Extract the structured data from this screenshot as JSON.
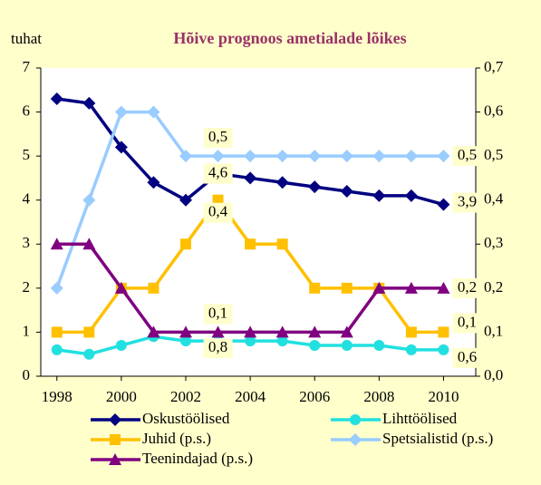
{
  "chart_data": {
    "type": "line",
    "title": "Hõive prognoos ametialade lõikes",
    "y_label": "tuhat",
    "x": [
      1998,
      1999,
      2000,
      2001,
      2002,
      2003,
      2004,
      2005,
      2006,
      2007,
      2008,
      2009,
      2010
    ],
    "xlim": [
      1997.5,
      2011
    ],
    "xticks": [
      1998,
      2000,
      2002,
      2004,
      2006,
      2008,
      2010
    ],
    "ylim": [
      0,
      7
    ],
    "yticks": [
      0,
      1,
      2,
      3,
      4,
      5,
      6,
      7
    ],
    "y2lim": [
      0,
      0.7
    ],
    "y2ticks": [
      {
        "value": 0,
        "label": "0,0"
      },
      {
        "value": 0.1,
        "label": "0,1"
      },
      {
        "value": 0.2,
        "label": "0,2"
      },
      {
        "value": 0.3,
        "label": "0,3"
      },
      {
        "value": 0.4,
        "label": "0,4"
      },
      {
        "value": 0.5,
        "label": "0,5"
      },
      {
        "value": 0.6,
        "label": "0,6"
      },
      {
        "value": 0.7,
        "label": "0,7"
      }
    ],
    "series": [
      {
        "name": "Oskustöölised",
        "color": "#000080",
        "marker": "diamond",
        "values": [
          6.3,
          6.2,
          5.2,
          4.4,
          4.0,
          4.6,
          4.5,
          4.4,
          4.3,
          4.2,
          4.1,
          4.1,
          3.9
        ],
        "value_labels": [
          null,
          null,
          null,
          null,
          null,
          "4,6",
          null,
          null,
          null,
          null,
          null,
          null,
          "3,9"
        ]
      },
      {
        "name": "Lihttöölised",
        "color": "#22e0e0",
        "marker": "circle",
        "values": [
          0.6,
          0.5,
          0.7,
          0.9,
          0.8,
          0.8,
          0.8,
          0.8,
          0.7,
          0.7,
          0.7,
          0.6,
          0.6
        ],
        "value_labels": [
          null,
          null,
          null,
          null,
          null,
          "0,8",
          null,
          null,
          null,
          null,
          null,
          null,
          "0,6"
        ]
      },
      {
        "name": "Juhid (p.s.)",
        "color": "#ffc000",
        "marker": "square",
        "axis": "y2",
        "values": [
          0.1,
          0.1,
          0.2,
          0.2,
          0.3,
          0.4,
          0.3,
          0.3,
          0.2,
          0.2,
          0.2,
          0.1,
          0.1
        ],
        "value_labels": [
          null,
          null,
          null,
          null,
          null,
          "0,4",
          null,
          null,
          null,
          null,
          null,
          null,
          "0,1"
        ]
      },
      {
        "name": "Spetsialistid (p.s.)",
        "color": "#99ccff",
        "marker": "diamond",
        "axis": "y2",
        "values": [
          0.2,
          0.4,
          0.6,
          0.6,
          0.5,
          0.5,
          0.5,
          0.5,
          0.5,
          0.5,
          0.5,
          0.5,
          0.5
        ],
        "value_labels": [
          null,
          null,
          null,
          null,
          null,
          "0,5",
          null,
          null,
          null,
          null,
          null,
          null,
          "0,5"
        ]
      },
      {
        "name": "Teenindajad (p.s.)",
        "color": "#800080",
        "marker": "triangle",
        "axis": "y2",
        "values": [
          0.3,
          0.3,
          0.2,
          0.1,
          0.1,
          0.1,
          0.1,
          0.1,
          0.1,
          0.1,
          0.2,
          0.2,
          0.2
        ],
        "value_labels": [
          null,
          null,
          null,
          null,
          null,
          "0,1",
          null,
          null,
          null,
          null,
          null,
          null,
          "0,2"
        ]
      }
    ]
  }
}
